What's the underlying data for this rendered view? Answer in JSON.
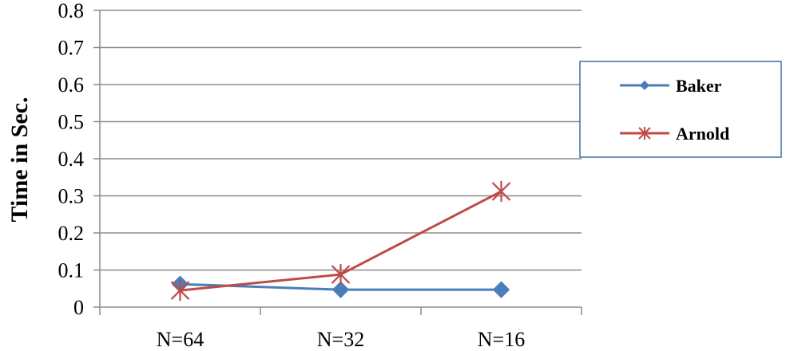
{
  "chart_data": {
    "type": "line",
    "categories": [
      "N=64",
      "N=32",
      "N=16"
    ],
    "series": [
      {
        "name": "Baker",
        "values": [
          0.062,
          0.047,
          0.047
        ],
        "color": "#4a7ebb",
        "marker": "diamond"
      },
      {
        "name": "Arnold",
        "values": [
          0.045,
          0.088,
          0.312
        ],
        "color": "#be4b48",
        "marker": "star"
      }
    ],
    "title": "",
    "xlabel": "",
    "ylabel": "Time in Sec.",
    "ylim": [
      0,
      0.8
    ],
    "yticks": [
      "0",
      "0.1",
      "0.2",
      "0.3",
      "0.4",
      "0.5",
      "0.6",
      "0.7",
      "0.8"
    ],
    "grid": true,
    "legend_position": "right"
  }
}
